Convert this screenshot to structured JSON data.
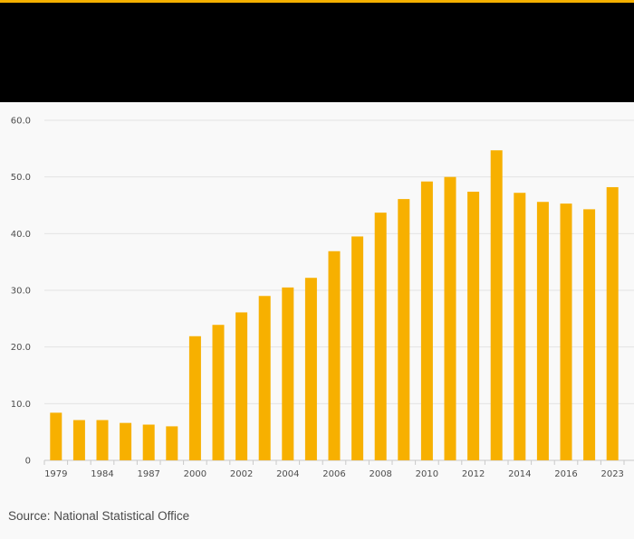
{
  "colors": {
    "accent": "#f5b000",
    "bar": "#f7b000",
    "band": "#000000",
    "background": "#f9f9f9"
  },
  "source": "Source: National Statistical Office",
  "chart_data": {
    "type": "bar",
    "categories": [
      "1979",
      "1984",
      "1987",
      "2000",
      "2002",
      "2004",
      "2006",
      "2008",
      "2010",
      "2012",
      "2014",
      "2016",
      "2023"
    ],
    "bars": [
      8.4,
      7.1,
      7.1,
      6.6,
      6.3,
      6.0,
      21.9,
      23.9,
      26.1,
      29.0,
      30.5,
      32.2,
      36.9,
      39.5,
      43.7,
      46.1,
      49.2,
      50.0,
      47.4,
      54.7,
      47.2,
      45.6,
      45.3,
      44.3,
      48.2
    ],
    "labeled_bar_indices": [
      0,
      2,
      4,
      6,
      8,
      10,
      12,
      14,
      16,
      18,
      20,
      22,
      24
    ],
    "y_ticks": [
      "0",
      "10.0",
      "20.0",
      "30.0",
      "40.0",
      "50.0",
      "60.0"
    ],
    "ylim": [
      0,
      60
    ],
    "grid": true,
    "legend": "none"
  }
}
